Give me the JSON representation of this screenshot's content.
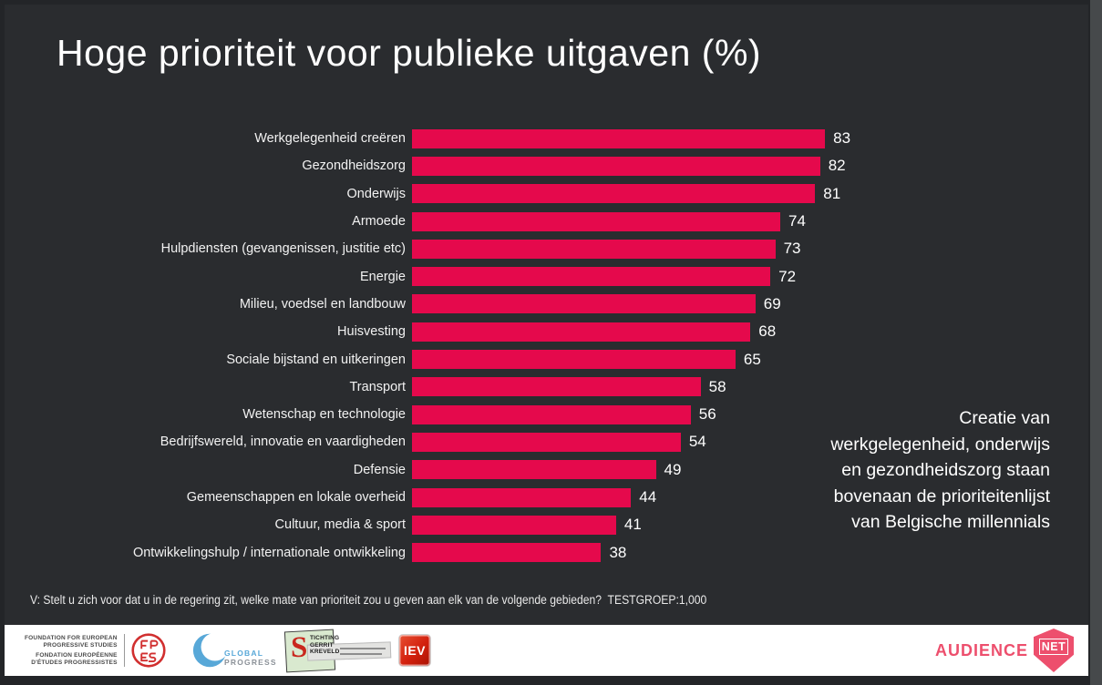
{
  "slide": {
    "title": "Hoge prioriteit voor publieke uitgaven (%)",
    "annotation": "Creatie van\nwerkgelegenheid, onderwijs\nen gezondheidszorg staan\nbovenaan de prioriteitenlijst\nvan Belgische millennials",
    "footnote": "V: Stelt u zich voor dat u in de regering zit, welke mate van prioriteit zou u geven aan elk van de volgende gebieden?  TESTGROEP:1,000"
  },
  "chart_data": {
    "type": "bar",
    "orientation": "horizontal",
    "title": "Hoge prioriteit voor publieke uitgaven (%)",
    "categories": [
      "Werkgelegenheid creëren",
      "Gezondheidszorg",
      "Onderwijs",
      "Armoede",
      "Hulpdiensten (gevangenissen, justitie etc)",
      "Energie",
      "Milieu, voedsel en landbouw",
      "Huisvesting",
      "Sociale bijstand en uitkeringen",
      "Transport",
      "Wetenschap en technologie",
      "Bedrijfswereld, innovatie en vaardigheden",
      "Defensie",
      "Gemeenschappen en lokale overheid",
      "Cultuur, media & sport",
      "Ontwikkelingshulp / internationale ontwikkeling"
    ],
    "values": [
      83,
      82,
      81,
      74,
      73,
      72,
      69,
      68,
      65,
      58,
      56,
      54,
      49,
      44,
      41,
      38
    ],
    "xlim": [
      0,
      100
    ],
    "grid": false,
    "legend": false,
    "bar_color": "#e5094c",
    "value_label_position": "outside-end"
  },
  "footer": {
    "feps_lines": [
      "FOUNDATION FOR EUROPEAN",
      "PROGRESSIVE STUDIES",
      "FONDATION EUROPÉENNE",
      "D'ÉTUDES PROGRESSISTES"
    ],
    "global_progress_line1": "GLOBAL",
    "global_progress_line2": "PROGRESS",
    "stichting_s": "S",
    "stichting_lines": [
      "TICHTING",
      "GERRIT",
      "KREVELD"
    ],
    "iev_label": "IEV",
    "audiencenet_word": "AUDIENCE",
    "audiencenet_net": "NET"
  },
  "colors": {
    "slide_background": "#2a2c2f",
    "frame": "#232528",
    "bar": "#e5094c",
    "text": "#ffffff",
    "footer_background": "#ffffff",
    "audiencenet_pink": "#ed4f6d",
    "global_progress_blue": "#58a8d8",
    "feps_red": "#d12f2f",
    "iev_red": "#d2200d",
    "stichting_green": "#d9e9cf"
  }
}
